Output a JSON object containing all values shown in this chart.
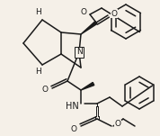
{
  "background_color": "#f5f0e8",
  "line_color": "#1a1a1a",
  "line_width": 1.1,
  "font_size": 6.5,
  "figsize": [
    1.78,
    1.51
  ],
  "dpi": 100,
  "xlim": [
    0,
    178
  ],
  "ylim": [
    0,
    151
  ]
}
